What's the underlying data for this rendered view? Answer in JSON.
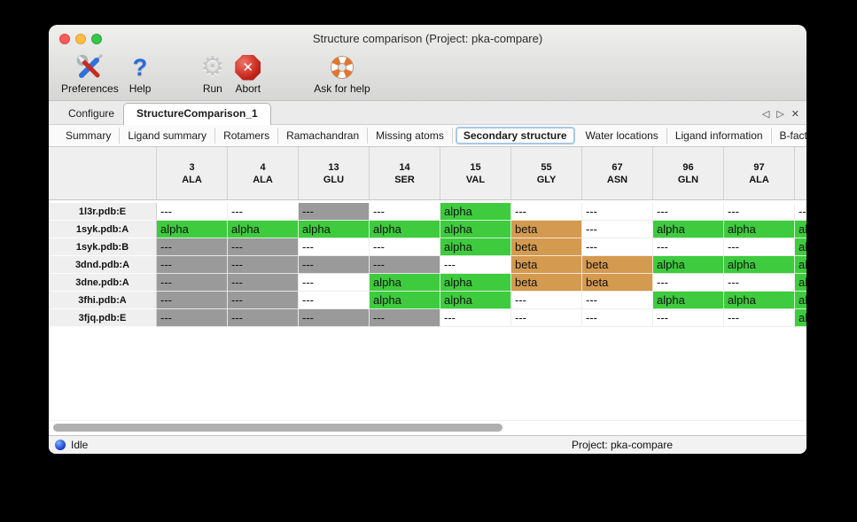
{
  "window": {
    "title": "Structure comparison (Project: pka-compare)"
  },
  "toolbar": {
    "items": [
      {
        "label": "Preferences",
        "icon": "tools-icon"
      },
      {
        "label": "Help",
        "icon": "question-icon"
      },
      {
        "label": "Run",
        "icon": "gear-icon"
      },
      {
        "label": "Abort",
        "icon": "abort-icon"
      },
      {
        "label": "Ask for help",
        "icon": "lifebuoy-icon"
      }
    ]
  },
  "tabs": {
    "items": [
      {
        "label": "Configure",
        "selected": false
      },
      {
        "label": "StructureComparison_1",
        "selected": true
      }
    ],
    "nav": {
      "left": "◁",
      "right": "▷",
      "close": "✕"
    }
  },
  "subtabs": {
    "items": [
      {
        "label": "Summary",
        "selected": false
      },
      {
        "label": "Ligand summary",
        "selected": false
      },
      {
        "label": "Rotamers",
        "selected": false
      },
      {
        "label": "Ramachandran",
        "selected": false
      },
      {
        "label": "Missing atoms",
        "selected": false
      },
      {
        "label": "Secondary structure",
        "selected": true
      },
      {
        "label": "Water locations",
        "selected": false
      },
      {
        "label": "Ligand information",
        "selected": false
      },
      {
        "label": "B-factors",
        "selected": false
      }
    ],
    "nav": {
      "left": "◁",
      "right": "▷"
    }
  },
  "colors": {
    "alpha": "#3ecb3e",
    "beta": "#d49a50",
    "gray": "#9a9a9a",
    "white": "#ffffff"
  },
  "table": {
    "columns": [
      {
        "num": "3",
        "res": "ALA"
      },
      {
        "num": "4",
        "res": "ALA"
      },
      {
        "num": "13",
        "res": "GLU"
      },
      {
        "num": "14",
        "res": "SER"
      },
      {
        "num": "15",
        "res": "VAL"
      },
      {
        "num": "55",
        "res": "GLY"
      },
      {
        "num": "67",
        "res": "ASN"
      },
      {
        "num": "96",
        "res": "GLN"
      },
      {
        "num": "97",
        "res": "ALA"
      },
      {
        "num": "",
        "res": ""
      }
    ],
    "rows": [
      {
        "label": "1l3r.pdb:E",
        "cells": [
          {
            "t": "---",
            "s": "white"
          },
          {
            "t": "---",
            "s": "white"
          },
          {
            "t": "---",
            "s": "gray"
          },
          {
            "t": "---",
            "s": "white"
          },
          {
            "t": "alpha",
            "s": "alpha"
          },
          {
            "t": "---",
            "s": "white"
          },
          {
            "t": "---",
            "s": "white"
          },
          {
            "t": "---",
            "s": "white"
          },
          {
            "t": "---",
            "s": "white"
          },
          {
            "t": "---",
            "s": "white"
          }
        ]
      },
      {
        "label": "1syk.pdb:A",
        "cells": [
          {
            "t": "alpha",
            "s": "alpha"
          },
          {
            "t": "alpha",
            "s": "alpha"
          },
          {
            "t": "alpha",
            "s": "alpha"
          },
          {
            "t": "alpha",
            "s": "alpha"
          },
          {
            "t": "alpha",
            "s": "alpha"
          },
          {
            "t": "beta",
            "s": "beta"
          },
          {
            "t": "---",
            "s": "white"
          },
          {
            "t": "alpha",
            "s": "alpha"
          },
          {
            "t": "alpha",
            "s": "alpha"
          },
          {
            "t": "alpha",
            "s": "alpha"
          }
        ]
      },
      {
        "label": "1syk.pdb:B",
        "cells": [
          {
            "t": "---",
            "s": "gray"
          },
          {
            "t": "---",
            "s": "gray"
          },
          {
            "t": "---",
            "s": "white"
          },
          {
            "t": "---",
            "s": "white"
          },
          {
            "t": "alpha",
            "s": "alpha"
          },
          {
            "t": "beta",
            "s": "beta"
          },
          {
            "t": "---",
            "s": "white"
          },
          {
            "t": "---",
            "s": "white"
          },
          {
            "t": "---",
            "s": "white"
          },
          {
            "t": "alpha",
            "s": "alpha"
          }
        ]
      },
      {
        "label": "3dnd.pdb:A",
        "cells": [
          {
            "t": "---",
            "s": "gray"
          },
          {
            "t": "---",
            "s": "gray"
          },
          {
            "t": "---",
            "s": "gray"
          },
          {
            "t": "---",
            "s": "gray"
          },
          {
            "t": "---",
            "s": "white"
          },
          {
            "t": "beta",
            "s": "beta"
          },
          {
            "t": "beta",
            "s": "beta"
          },
          {
            "t": "alpha",
            "s": "alpha"
          },
          {
            "t": "alpha",
            "s": "alpha"
          },
          {
            "t": "alpha",
            "s": "alpha"
          }
        ]
      },
      {
        "label": "3dne.pdb:A",
        "cells": [
          {
            "t": "---",
            "s": "gray"
          },
          {
            "t": "---",
            "s": "gray"
          },
          {
            "t": "---",
            "s": "white"
          },
          {
            "t": "alpha",
            "s": "alpha"
          },
          {
            "t": "alpha",
            "s": "alpha"
          },
          {
            "t": "beta",
            "s": "beta"
          },
          {
            "t": "beta",
            "s": "beta"
          },
          {
            "t": "---",
            "s": "white"
          },
          {
            "t": "---",
            "s": "white"
          },
          {
            "t": "alpha",
            "s": "alpha"
          }
        ]
      },
      {
        "label": "3fhi.pdb:A",
        "cells": [
          {
            "t": "---",
            "s": "gray"
          },
          {
            "t": "---",
            "s": "gray"
          },
          {
            "t": "---",
            "s": "white"
          },
          {
            "t": "alpha",
            "s": "alpha"
          },
          {
            "t": "alpha",
            "s": "alpha"
          },
          {
            "t": "---",
            "s": "white"
          },
          {
            "t": "---",
            "s": "white"
          },
          {
            "t": "alpha",
            "s": "alpha"
          },
          {
            "t": "alpha",
            "s": "alpha"
          },
          {
            "t": "alpha",
            "s": "alpha"
          }
        ]
      },
      {
        "label": "3fjq.pdb:E",
        "cells": [
          {
            "t": "---",
            "s": "gray"
          },
          {
            "t": "---",
            "s": "gray"
          },
          {
            "t": "---",
            "s": "gray"
          },
          {
            "t": "---",
            "s": "gray"
          },
          {
            "t": "---",
            "s": "white"
          },
          {
            "t": "---",
            "s": "white"
          },
          {
            "t": "---",
            "s": "white"
          },
          {
            "t": "---",
            "s": "white"
          },
          {
            "t": "---",
            "s": "white"
          },
          {
            "t": "alpha",
            "s": "alpha"
          }
        ]
      }
    ]
  },
  "statusbar": {
    "status": "Idle",
    "project": "Project: pka-compare"
  }
}
